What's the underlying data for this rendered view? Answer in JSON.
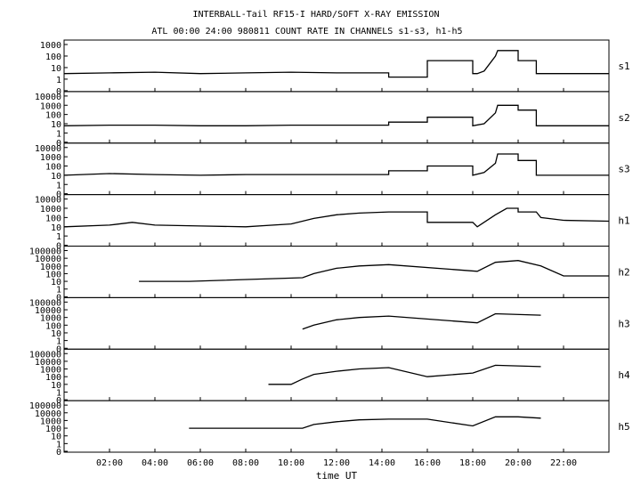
{
  "title": "INTERBALL-Tail RF15-I HARD/SOFT X-RAY EMISSION",
  "subtitle": "ATL 00:00 24:00 980811  COUNT RATE IN CHANNELS s1-s3, h1-h5",
  "chart_data": {
    "type": "line",
    "title": "INTERBALL-Tail RF15-I HARD/SOFT X-RAY EMISSION",
    "subtitle": "ATL 00:00 24:00 980811  COUNT RATE IN CHANNELS s1-s3, h1-h5",
    "xlabel": "time UT",
    "xlim": [
      0,
      24
    ],
    "x_ticks": [
      2,
      4,
      6,
      8,
      10,
      12,
      14,
      16,
      18,
      20,
      22
    ],
    "x_tick_labels": [
      "02:00",
      "04:00",
      "06:00",
      "08:00",
      "10:00",
      "12:00",
      "14:00",
      "16:00",
      "18:00",
      "20:00",
      "22:00"
    ],
    "y_scale": "log",
    "panels": [
      {
        "name": "s1",
        "ylim": [
          0,
          1000
        ],
        "ticks": [
          "0",
          "1",
          "10",
          "100",
          "1000"
        ],
        "points": [
          [
            0,
            3
          ],
          [
            2,
            3.5
          ],
          [
            4,
            4
          ],
          [
            6,
            3
          ],
          [
            8,
            3.5
          ],
          [
            10,
            4
          ],
          [
            12,
            3.5
          ],
          [
            14.3,
            3.5
          ],
          [
            14.3,
            1.5
          ],
          [
            16,
            1.5
          ],
          [
            16,
            40
          ],
          [
            18,
            40
          ],
          [
            18,
            3
          ],
          [
            18.2,
            3
          ],
          [
            18.5,
            5
          ],
          [
            19,
            100
          ],
          [
            19.1,
            300
          ],
          [
            20,
            300
          ],
          [
            20,
            40
          ],
          [
            20.8,
            40
          ],
          [
            20.8,
            3
          ],
          [
            21.5,
            3
          ],
          [
            24,
            3
          ]
        ]
      },
      {
        "name": "s2",
        "ylim": [
          0,
          10000
        ],
        "ticks": [
          "0",
          "1",
          "10",
          "100",
          "1000",
          "10000"
        ],
        "points": [
          [
            0,
            6
          ],
          [
            2,
            7
          ],
          [
            4,
            7
          ],
          [
            6,
            6
          ],
          [
            8,
            6
          ],
          [
            10,
            7
          ],
          [
            12,
            7
          ],
          [
            14.3,
            7
          ],
          [
            14.3,
            15
          ],
          [
            16,
            15
          ],
          [
            16,
            50
          ],
          [
            18,
            50
          ],
          [
            18,
            6
          ],
          [
            18.5,
            10
          ],
          [
            19,
            150
          ],
          [
            19.1,
            1000
          ],
          [
            20,
            1000
          ],
          [
            20,
            300
          ],
          [
            20.8,
            300
          ],
          [
            20.8,
            6
          ],
          [
            24,
            6
          ]
        ]
      },
      {
        "name": "s3",
        "ylim": [
          0,
          10000
        ],
        "ticks": [
          "0",
          "1",
          "10",
          "100",
          "1000",
          "10000"
        ],
        "points": [
          [
            0,
            10
          ],
          [
            2,
            15
          ],
          [
            4,
            12
          ],
          [
            6,
            10
          ],
          [
            8,
            12
          ],
          [
            10,
            12
          ],
          [
            12,
            12
          ],
          [
            14.3,
            12
          ],
          [
            14.3,
            30
          ],
          [
            16,
            30
          ],
          [
            16,
            100
          ],
          [
            18,
            100
          ],
          [
            18,
            10
          ],
          [
            18.5,
            20
          ],
          [
            19,
            200
          ],
          [
            19.1,
            2000
          ],
          [
            20,
            2000
          ],
          [
            20,
            400
          ],
          [
            20.8,
            400
          ],
          [
            20.8,
            10
          ],
          [
            24,
            10
          ]
        ]
      },
      {
        "name": "h1",
        "ylim": [
          0,
          10000
        ],
        "ticks": [
          "0",
          "1",
          "10",
          "100",
          "1000",
          "10000"
        ],
        "points": [
          [
            0,
            10
          ],
          [
            2,
            15
          ],
          [
            3,
            30
          ],
          [
            4,
            15
          ],
          [
            6,
            12
          ],
          [
            8,
            10
          ],
          [
            10,
            20
          ],
          [
            11,
            80
          ],
          [
            12,
            200
          ],
          [
            13,
            300
          ],
          [
            14.3,
            400
          ],
          [
            16,
            400
          ],
          [
            16,
            30
          ],
          [
            18,
            30
          ],
          [
            18.2,
            10
          ],
          [
            19,
            200
          ],
          [
            19.5,
            1000
          ],
          [
            20,
            1000
          ],
          [
            20,
            400
          ],
          [
            20.8,
            400
          ],
          [
            21,
            100
          ],
          [
            22,
            50
          ],
          [
            24,
            40
          ]
        ]
      },
      {
        "name": "h2",
        "ylim": [
          0,
          100000
        ],
        "ticks": [
          "0",
          "1",
          "10",
          "100",
          "1000",
          "10000",
          "100000"
        ],
        "points": [
          [
            3.3,
            10
          ],
          [
            5.5,
            10
          ],
          [
            10.5,
            30
          ],
          [
            11,
            100
          ],
          [
            12,
            500
          ],
          [
            13,
            1000
          ],
          [
            14.3,
            1500
          ],
          [
            18.2,
            200
          ],
          [
            19,
            3000
          ],
          [
            20,
            5000
          ],
          [
            21,
            1000
          ],
          [
            22,
            50
          ],
          [
            24,
            50
          ]
        ]
      },
      {
        "name": "h3",
        "ylim": [
          0,
          100000
        ],
        "ticks": [
          "0",
          "1",
          "10",
          "100",
          "1000",
          "10000",
          "100000"
        ],
        "points": [
          [
            10.5,
            30
          ],
          [
            11,
            100
          ],
          [
            12,
            500
          ],
          [
            13,
            1000
          ],
          [
            14.3,
            1500
          ],
          [
            18.2,
            200
          ],
          [
            19,
            3000
          ],
          [
            21,
            2000
          ]
        ]
      },
      {
        "name": "h4",
        "ylim": [
          0,
          100000
        ],
        "ticks": [
          "0",
          "1",
          "10",
          "100",
          "1000",
          "10000",
          "100000"
        ],
        "points": [
          [
            9,
            10
          ],
          [
            10,
            10
          ],
          [
            10.5,
            50
          ],
          [
            11,
            200
          ],
          [
            12,
            500
          ],
          [
            13,
            1000
          ],
          [
            14.3,
            1500
          ],
          [
            16,
            100
          ],
          [
            18,
            300
          ],
          [
            19,
            3000
          ],
          [
            21,
            2000
          ]
        ]
      },
      {
        "name": "h5",
        "ylim": [
          0,
          100000
        ],
        "ticks": [
          "0",
          "1",
          "10",
          "100",
          "1000",
          "10000",
          "100000"
        ],
        "points": [
          [
            5.5,
            100
          ],
          [
            7.8,
            100
          ],
          [
            10.5,
            100
          ],
          [
            11,
            300
          ],
          [
            12,
            700
          ],
          [
            13,
            1200
          ],
          [
            14.3,
            1500
          ],
          [
            16,
            1500
          ],
          [
            18,
            200
          ],
          [
            19,
            3000
          ],
          [
            20,
            3000
          ],
          [
            21,
            2000
          ]
        ]
      }
    ]
  }
}
